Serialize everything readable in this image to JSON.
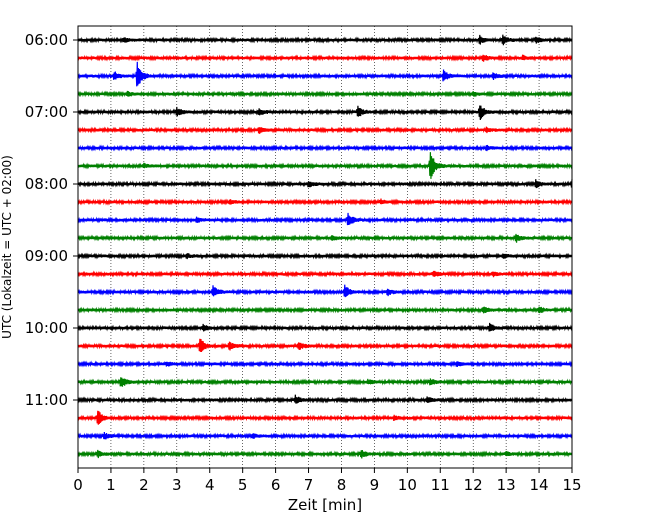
{
  "chart_data": {
    "type": "line",
    "title": "",
    "xlabel": "Zeit  [min]",
    "ylabel": "UTC (Lokalzeit = UTC + 02:00)",
    "xlim": [
      0,
      15
    ],
    "x_ticks": [
      0,
      1,
      2,
      3,
      4,
      5,
      6,
      7,
      8,
      9,
      10,
      11,
      12,
      13,
      14,
      15
    ],
    "y_tick_labels": [
      "06:00",
      "07:00",
      "08:00",
      "09:00",
      "10:00",
      "11:00"
    ],
    "row_minutes": 15,
    "start_time": "06:00",
    "row_count": 24,
    "grid": "vertical dotted",
    "colors": [
      "#000000",
      "#ff0000",
      "#0000ff",
      "#008000"
    ],
    "events": [
      {
        "row": 0,
        "t": 12.2,
        "amp": 4
      },
      {
        "row": 0,
        "t": 12.9,
        "amp": 5
      },
      {
        "row": 0,
        "t": 13.9,
        "amp": 3
      },
      {
        "row": 0,
        "t": 1.4,
        "amp": 2
      },
      {
        "row": 1,
        "t": 12.3,
        "amp": 3
      },
      {
        "row": 1,
        "t": 13.5,
        "amp": 2
      },
      {
        "row": 2,
        "t": 1.8,
        "amp": 14
      },
      {
        "row": 2,
        "t": 1.1,
        "amp": 4
      },
      {
        "row": 2,
        "t": 11.1,
        "amp": 6
      },
      {
        "row": 2,
        "t": 12.6,
        "amp": 3
      },
      {
        "row": 3,
        "t": 1.5,
        "amp": 2
      },
      {
        "row": 3,
        "t": 12.0,
        "amp": 2
      },
      {
        "row": 4,
        "t": 3.0,
        "amp": 4
      },
      {
        "row": 4,
        "t": 8.5,
        "amp": 5
      },
      {
        "row": 4,
        "t": 12.2,
        "amp": 8
      },
      {
        "row": 4,
        "t": 5.5,
        "amp": 3
      },
      {
        "row": 5,
        "t": 5.5,
        "amp": 3
      },
      {
        "row": 5,
        "t": 12.4,
        "amp": 2
      },
      {
        "row": 6,
        "t": 12.4,
        "amp": 2
      },
      {
        "row": 7,
        "t": 10.7,
        "amp": 14
      },
      {
        "row": 7,
        "t": 2.0,
        "amp": 2
      },
      {
        "row": 8,
        "t": 7.0,
        "amp": 3
      },
      {
        "row": 8,
        "t": 13.9,
        "amp": 4
      },
      {
        "row": 8,
        "t": 15.0,
        "amp": 5
      },
      {
        "row": 9,
        "t": 4.6,
        "amp": 2
      },
      {
        "row": 9,
        "t": 9.2,
        "amp": 2
      },
      {
        "row": 10,
        "t": 8.2,
        "amp": 7
      },
      {
        "row": 10,
        "t": 3.6,
        "amp": 2
      },
      {
        "row": 11,
        "t": 13.3,
        "amp": 4
      },
      {
        "row": 11,
        "t": 7.7,
        "amp": 2
      },
      {
        "row": 12,
        "t": 12.9,
        "amp": 2
      },
      {
        "row": 12,
        "t": 3.3,
        "amp": 2
      },
      {
        "row": 13,
        "t": 10.8,
        "amp": 3
      },
      {
        "row": 13,
        "t": 12.6,
        "amp": 2
      },
      {
        "row": 14,
        "t": 8.1,
        "amp": 7
      },
      {
        "row": 14,
        "t": 4.1,
        "amp": 6
      },
      {
        "row": 14,
        "t": 9.4,
        "amp": 3
      },
      {
        "row": 15,
        "t": 12.3,
        "amp": 3
      },
      {
        "row": 15,
        "t": 14.0,
        "amp": 3
      },
      {
        "row": 16,
        "t": 12.5,
        "amp": 4
      },
      {
        "row": 16,
        "t": 3.8,
        "amp": 3
      },
      {
        "row": 17,
        "t": 3.7,
        "amp": 8
      },
      {
        "row": 17,
        "t": 4.6,
        "amp": 4
      },
      {
        "row": 17,
        "t": 6.7,
        "amp": 4
      },
      {
        "row": 18,
        "t": 2.7,
        "amp": 2
      },
      {
        "row": 18,
        "t": 11.5,
        "amp": 2
      },
      {
        "row": 19,
        "t": 1.3,
        "amp": 6
      },
      {
        "row": 19,
        "t": 10.7,
        "amp": 3
      },
      {
        "row": 19,
        "t": 8.8,
        "amp": 2
      },
      {
        "row": 20,
        "t": 6.6,
        "amp": 4
      },
      {
        "row": 20,
        "t": 10.6,
        "amp": 3
      },
      {
        "row": 21,
        "t": 0.6,
        "amp": 8
      },
      {
        "row": 21,
        "t": 9.6,
        "amp": 2
      },
      {
        "row": 22,
        "t": 0.8,
        "amp": 3
      },
      {
        "row": 22,
        "t": 5.3,
        "amp": 2
      },
      {
        "row": 23,
        "t": 0.6,
        "amp": 3
      },
      {
        "row": 23,
        "t": 8.6,
        "amp": 4
      },
      {
        "row": 23,
        "t": 13.0,
        "amp": 2
      }
    ]
  }
}
